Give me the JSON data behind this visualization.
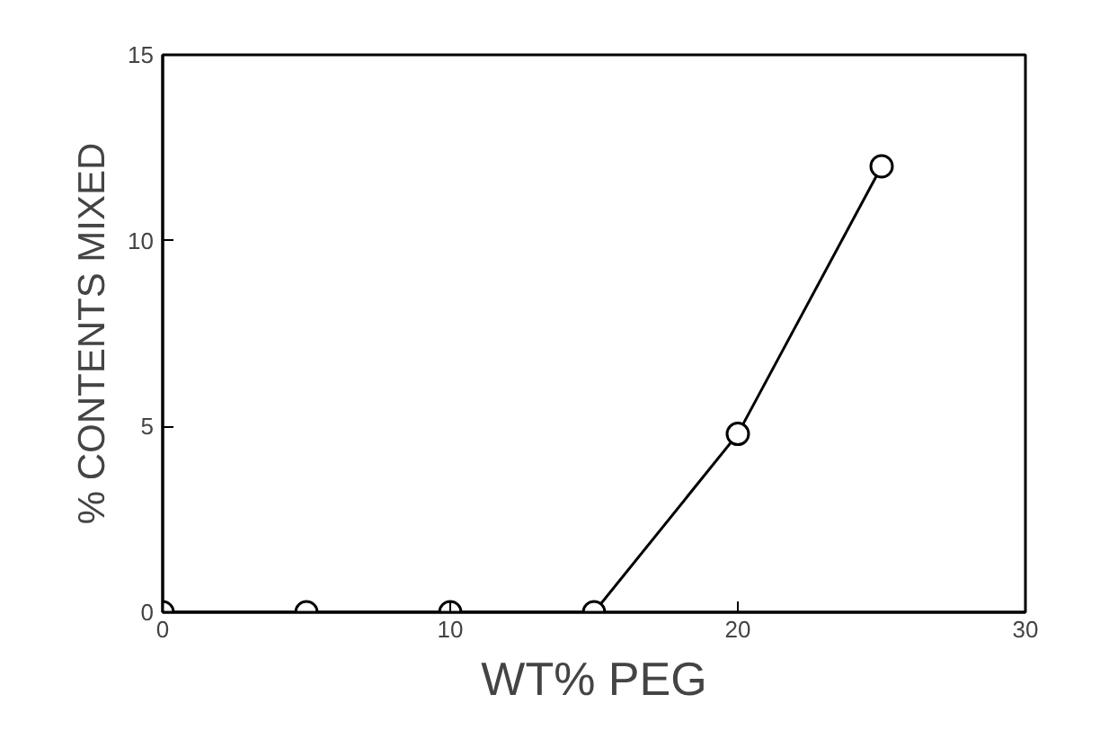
{
  "chart_data": {
    "type": "line",
    "xlabel": "WT% PEG",
    "ylabel": "% CONTENTS MIXED",
    "x": [
      0,
      5,
      10,
      15,
      20,
      25
    ],
    "series": [
      {
        "color": "#000000",
        "values": [
          0,
          0,
          0,
          0,
          4.8,
          12
        ]
      }
    ],
    "xlim": [
      0,
      30
    ],
    "xticks": [
      0,
      10,
      20,
      30
    ],
    "ylim": [
      0,
      15
    ],
    "yticks": [
      0,
      5,
      10,
      15
    ],
    "grid": false,
    "marker": "circle",
    "line_style": "solid"
  }
}
